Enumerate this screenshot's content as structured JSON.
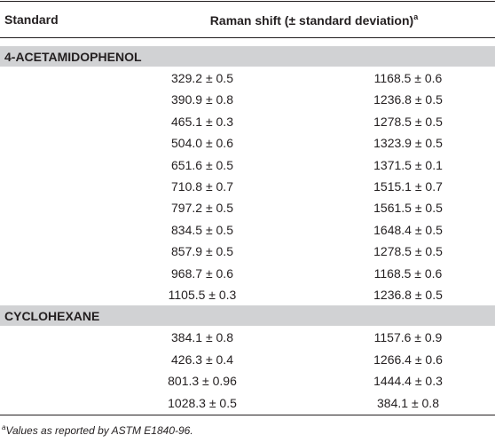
{
  "table": {
    "header": [
      "Standard",
      "Raman shift (± standard deviation)"
    ],
    "header_note": "a",
    "sections": [
      {
        "name": "4-ACETAMIDOPHENOL",
        "rows": [
          [
            "329.2 ± 0.5",
            "1168.5 ± 0.6"
          ],
          [
            "390.9 ± 0.8",
            "1236.8 ± 0.5"
          ],
          [
            "465.1 ± 0.3",
            "1278.5 ± 0.5"
          ],
          [
            "504.0 ± 0.6",
            "1323.9 ± 0.5"
          ],
          [
            "651.6 ± 0.5",
            "1371.5 ± 0.1"
          ],
          [
            "710.8 ± 0.7",
            "1515.1 ± 0.7"
          ],
          [
            "797.2 ± 0.5",
            "1561.5 ± 0.5"
          ],
          [
            "834.5 ± 0.5",
            "1648.4 ± 0.5"
          ],
          [
            "857.9 ± 0.5",
            "1278.5 ± 0.5"
          ],
          [
            "968.7 ± 0.6",
            "1168.5 ± 0.6"
          ],
          [
            "1105.5 ± 0.3",
            "1236.8 ± 0.5"
          ]
        ]
      },
      {
        "name": "CYCLOHEXANE",
        "rows": [
          [
            "384.1 ± 0.8",
            "1157.6 ± 0.9"
          ],
          [
            "426.3 ± 0.4",
            "1266.4 ± 0.6"
          ],
          [
            "801.3 ± 0.96",
            "1444.4 ± 0.3"
          ],
          [
            "1028.3 ± 0.5",
            "384.1 ± 0.8"
          ]
        ]
      }
    ],
    "footnote": {
      "marker": "a",
      "text": "Values as reported by ASTM E1840-96."
    }
  }
}
